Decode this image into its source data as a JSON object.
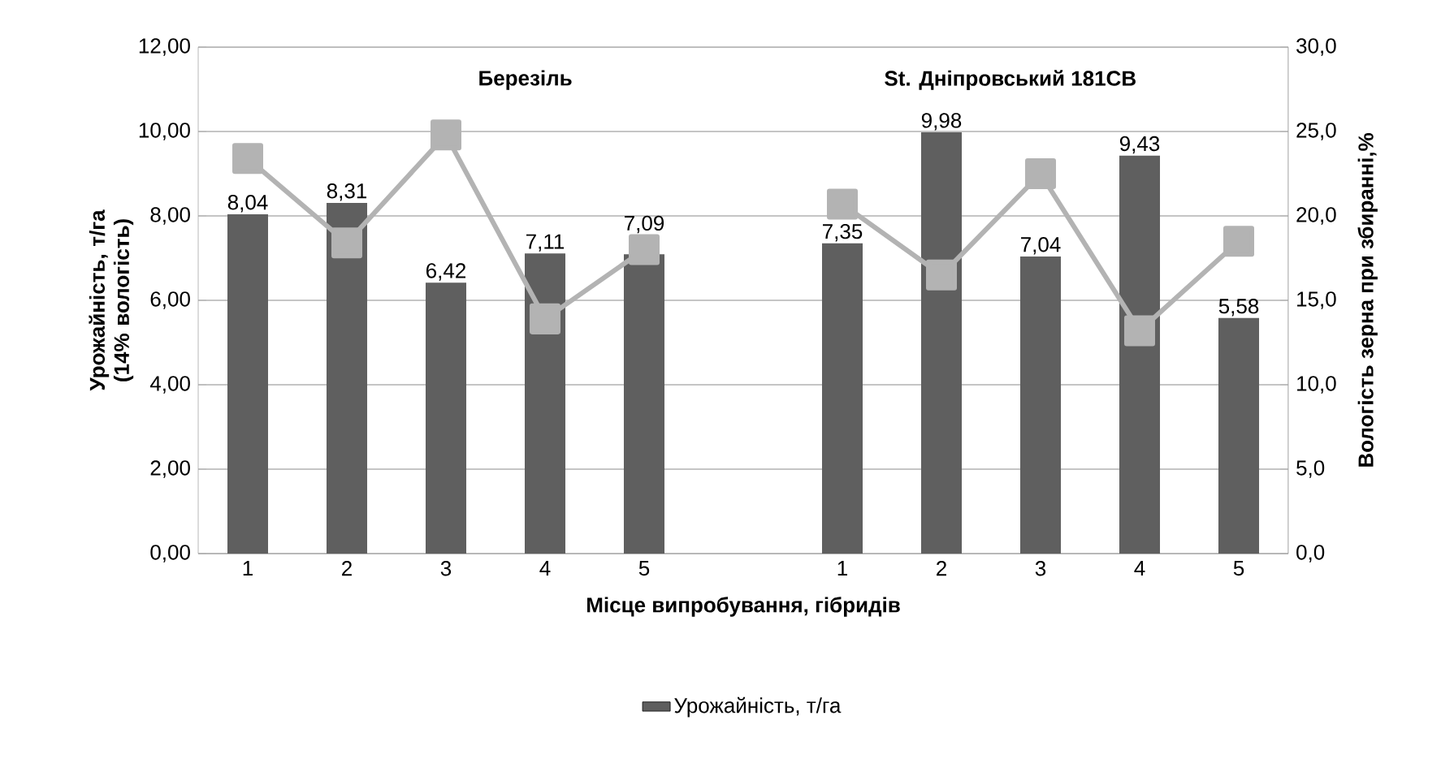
{
  "chart_data": {
    "type": "bar",
    "categories": [
      "1",
      "2",
      "3",
      "4",
      "5",
      null,
      "1",
      "2",
      "3",
      "4",
      "5"
    ],
    "series": [
      {
        "name": "Урожайність, т/га",
        "type": "bar",
        "color": "#5f5f5f",
        "values": [
          8.04,
          8.31,
          6.42,
          7.11,
          7.09,
          null,
          7.35,
          9.98,
          7.04,
          9.43,
          5.58
        ],
        "value_labels": [
          "8,04",
          "8,31",
          "6,42",
          "7,11",
          "7,09",
          null,
          "7,35",
          "9,98",
          "7,04",
          "9,43",
          "5,58"
        ]
      },
      {
        "type": "line",
        "axis": "y2",
        "color": "#b3b3b3",
        "values": [
          23.4,
          18.4,
          24.8,
          13.9,
          18.0,
          null,
          20.7,
          16.5,
          22.5,
          13.2,
          18.5
        ]
      }
    ],
    "xlabel": "Місце випробування, гібридів",
    "ylabel": "Урожайність, т/га (14% вологість)",
    "y2label": "Вологість зерна при збиранні,%",
    "annotations": [
      "Березіль",
      "St. Дніпровський 181СВ"
    ],
    "ylim": [
      0,
      12
    ],
    "yticks": [
      {
        "value": 0,
        "label": "0,00"
      },
      {
        "value": 2,
        "label": "2,00"
      },
      {
        "value": 4,
        "label": "4,00"
      },
      {
        "value": 6,
        "label": "6,00"
      },
      {
        "value": 8,
        "label": "8,00"
      },
      {
        "value": 10,
        "label": "10,00"
      },
      {
        "value": 12,
        "label": "12,00"
      }
    ],
    "y2lim": [
      0,
      30
    ],
    "y2ticks": [
      {
        "value": 0,
        "label": "0,0"
      },
      {
        "value": 5,
        "label": "5,0"
      },
      {
        "value": 10,
        "label": "10,0"
      },
      {
        "value": 15,
        "label": "15,0"
      },
      {
        "value": 20,
        "label": "20,0"
      },
      {
        "value": 25,
        "label": "25,0"
      },
      {
        "value": 30,
        "label": "30,0"
      }
    ],
    "grid": "y",
    "legend": "bottom",
    "marker": "square",
    "line_style": "solid"
  }
}
